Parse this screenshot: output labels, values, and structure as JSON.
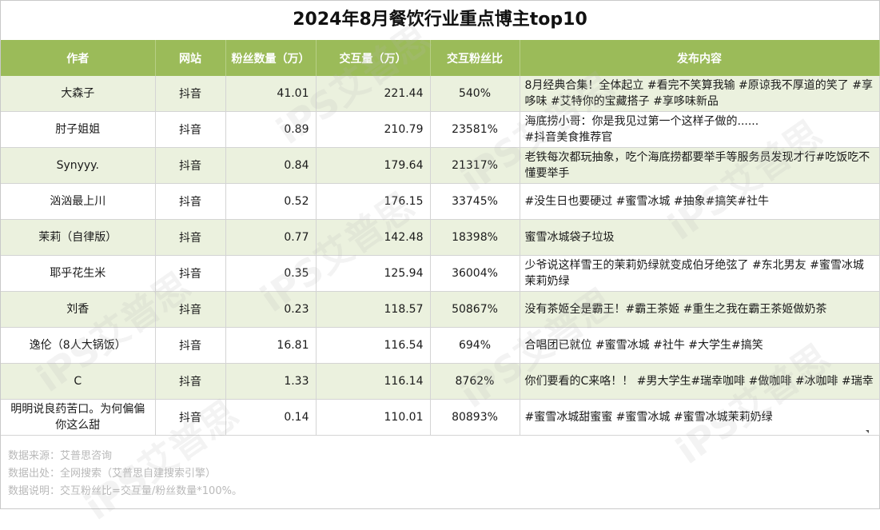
{
  "title": "2024年8月餐饮行业重点博主top10",
  "headers": [
    "作者",
    "网站",
    "粉丝数量（万）",
    "交互量（万）",
    "交互粉丝比",
    "发布内容"
  ],
  "rows": [
    {
      "author": "大森子",
      "site": "抖音",
      "fans": "41.01",
      "interactions": "221.44",
      "ratio": "540%",
      "content": "8月经典合集！全体起立 #看完不笑算我输 #原谅我不厚道的笑了 #享哆味 #艾特你的宝藏搭子 #享哆味新品"
    },
    {
      "author": "肘子姐姐",
      "site": "抖音",
      "fans": "0.89",
      "interactions": "210.79",
      "ratio": "23581%",
      "content": "海底捞小哥：你是我见过第一个这样子做的......\n#抖音美食推荐官"
    },
    {
      "author": "Synyyy.",
      "site": "抖音",
      "fans": "0.84",
      "interactions": "179.64",
      "ratio": "21317%",
      "content": "老铁每次都玩抽象，吃个海底捞都要举手等服务员发现才行#吃饭吃不懂要举手"
    },
    {
      "author": "汹汹最上川",
      "site": "抖音",
      "fans": "0.52",
      "interactions": "176.15",
      "ratio": "33745%",
      "content": "#没生日也要硬过 #蜜雪冰城 #抽象#搞笑#社牛"
    },
    {
      "author": "茉莉（自律版）",
      "site": "抖音",
      "fans": "0.77",
      "interactions": "142.48",
      "ratio": "18398%",
      "content": "蜜雪冰城袋子垃圾"
    },
    {
      "author": "耶乎花生米",
      "site": "抖音",
      "fans": "0.35",
      "interactions": "125.94",
      "ratio": "36004%",
      "content": "少爷说这样雪王的茉莉奶绿就变成伯牙绝弦了 #东北男友 #蜜雪冰城茉莉奶绿"
    },
    {
      "author": "刘香",
      "site": "抖音",
      "fans": "0.23",
      "interactions": "118.57",
      "ratio": "50867%",
      "content": "没有茶姬全是霸王！#霸王茶姬 #重生之我在霸王茶姬做奶茶"
    },
    {
      "author": "逸伦（8人大锅饭）",
      "site": "抖音",
      "fans": "16.81",
      "interactions": "116.54",
      "ratio": "694%",
      "content": "合唱团已就位 #蜜雪冰城 #社牛 #大学生#搞笑"
    },
    {
      "author": "C",
      "site": "抖音",
      "fans": "1.33",
      "interactions": "116.14",
      "ratio": "8762%",
      "content": "你们要看的C来咯！！ #男大学生#瑞幸咖啡 #做咖啡 #冰咖啡 #瑞幸"
    },
    {
      "author": "明明说良药苦口。为何偏偏你这么甜",
      "site": "抖音",
      "fans": "0.14",
      "interactions": "110.01",
      "ratio": "80893%",
      "content": "#蜜雪冰城甜蜜蜜 #蜜雪冰城 #蜜雪冰城茉莉奶绿"
    }
  ],
  "footer": {
    "source": "数据来源：艾普思咨询",
    "origin": "数据出处：全网搜索（艾普思自建搜索引擎）",
    "note": "数据说明：交互粉丝比=交互量/粉丝数量*100%。"
  }
}
